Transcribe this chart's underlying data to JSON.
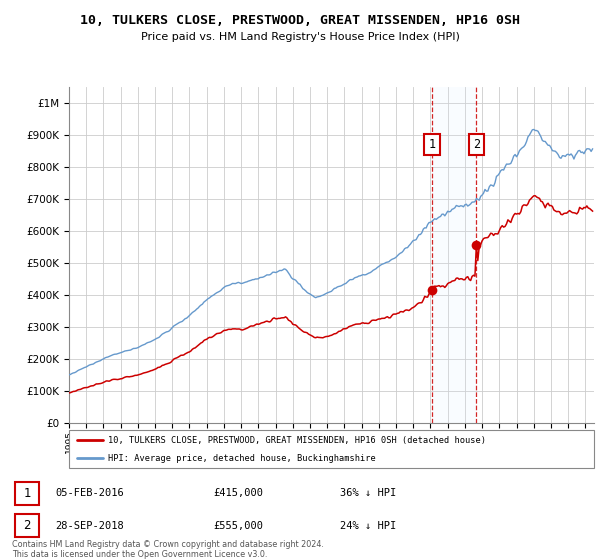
{
  "title": "10, TULKERS CLOSE, PRESTWOOD, GREAT MISSENDEN, HP16 0SH",
  "subtitle": "Price paid vs. HM Land Registry's House Price Index (HPI)",
  "legend_entry1": "10, TULKERS CLOSE, PRESTWOOD, GREAT MISSENDEN, HP16 0SH (detached house)",
  "legend_entry2": "HPI: Average price, detached house, Buckinghamshire",
  "purchase1_year": 2016.083,
  "purchase1_price": 415000,
  "purchase1_idx": 253,
  "purchase2_year": 2018.667,
  "purchase2_price": 555000,
  "purchase2_idx": 284,
  "footer": "Contains HM Land Registry data © Crown copyright and database right 2024.\nThis data is licensed under the Open Government Licence v3.0.",
  "color_house": "#cc0000",
  "color_hpi": "#6699cc",
  "color_vline": "#cc0000",
  "color_span": "#ddeeff",
  "ylim_max": 1050000,
  "xstart": 1995,
  "xend": 2025.5
}
